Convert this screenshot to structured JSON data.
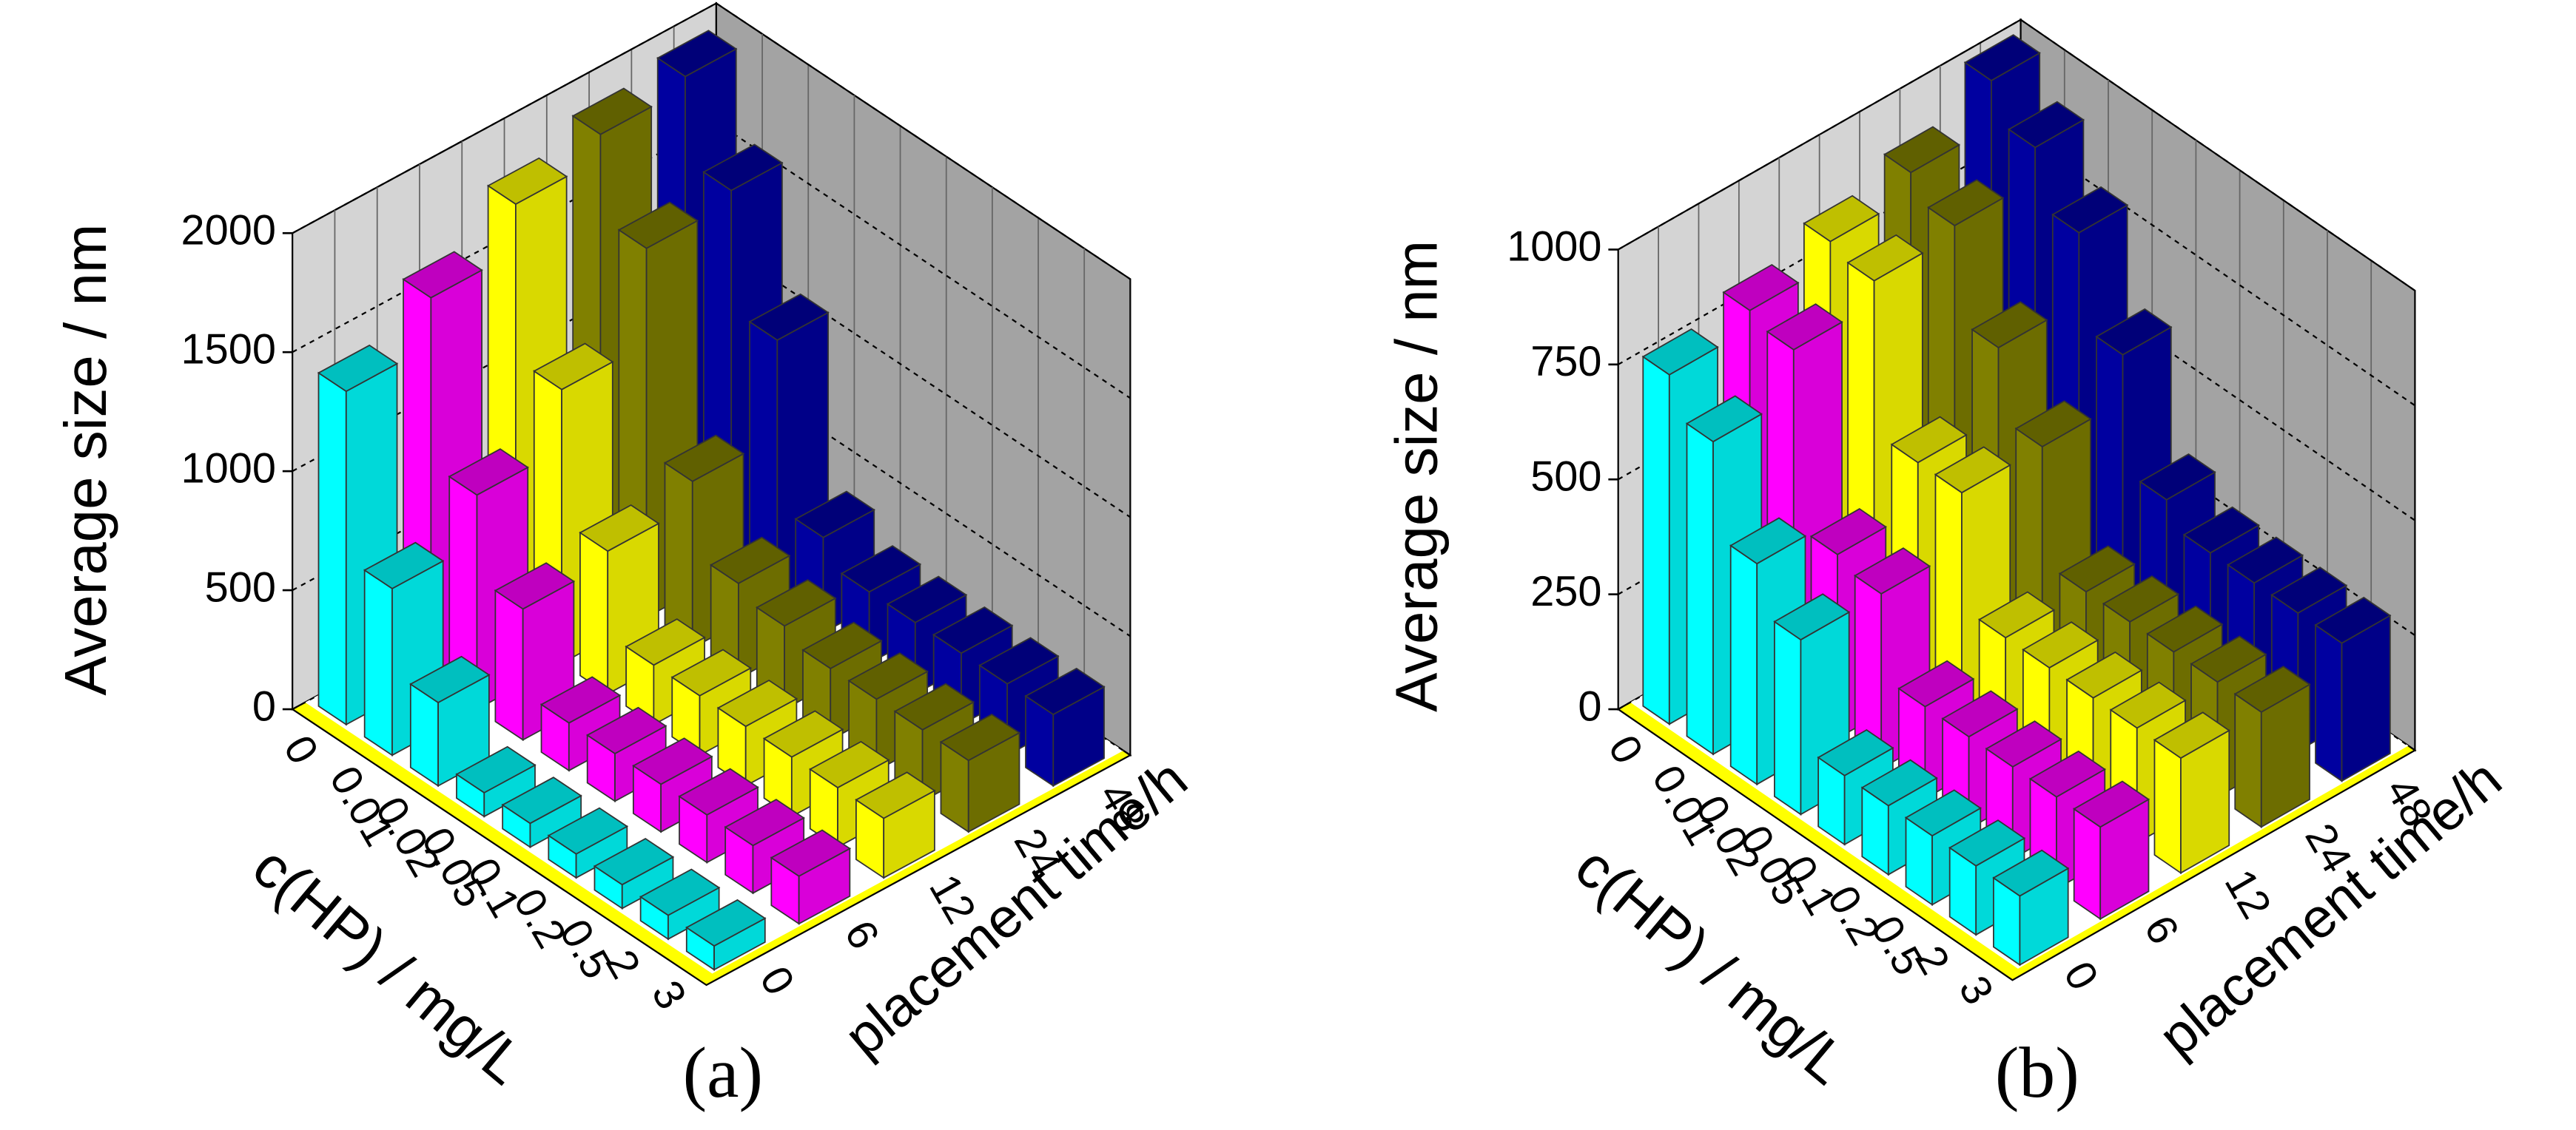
{
  "chart_data": [
    {
      "type": "bar3d",
      "label": "(a)",
      "ylabel": "Average size / nm",
      "xlabel": "c(HP) / mg/L",
      "series_label": "placement time/h",
      "categories": [
        "0",
        "0.01",
        "0.02",
        "0.05",
        "0.1",
        "0.2",
        "0.5",
        "2",
        "3"
      ],
      "ylim": [
        0,
        2000
      ],
      "yticks": [
        0,
        500,
        1000,
        1500,
        2000
      ],
      "series": [
        {
          "name": "0",
          "color": "#00ffff",
          "values": [
            1400,
            700,
            350,
            100,
            100,
            100,
            100,
            100,
            100
          ]
        },
        {
          "name": "6",
          "color": "#ff00ff",
          "values": [
            1600,
            900,
            550,
            200,
            200,
            200,
            200,
            200,
            200
          ]
        },
        {
          "name": "12",
          "color": "#ffff00",
          "values": [
            1800,
            1150,
            600,
            250,
            250,
            250,
            250,
            250,
            250
          ]
        },
        {
          "name": "24",
          "color": "#808000",
          "values": [
            1900,
            1550,
            700,
            400,
            350,
            300,
            300,
            300,
            300
          ]
        },
        {
          "name": "48",
          "color": "#0000a0",
          "values": [
            1950,
            1600,
            1100,
            400,
            300,
            300,
            300,
            300,
            300
          ]
        }
      ]
    },
    {
      "type": "bar3d",
      "label": "(b)",
      "ylabel": "Average size / nm",
      "xlabel": "c(HP) / mg/L",
      "series_label": "placement time/h",
      "categories": [
        "0",
        "0.01",
        "0.02",
        "0.05",
        "0.1",
        "0.2",
        "0.5",
        "2",
        "3"
      ],
      "ylim": [
        0,
        1000
      ],
      "yticks": [
        0,
        250,
        500,
        750,
        1000
      ],
      "series": [
        {
          "name": "0",
          "color": "#00ffff",
          "values": [
            760,
            680,
            480,
            380,
            150,
            150,
            150,
            150,
            150
          ]
        },
        {
          "name": "6",
          "color": "#ff00ff",
          "values": [
            800,
            780,
            400,
            380,
            200,
            200,
            200,
            200,
            200
          ]
        },
        {
          "name": "12",
          "color": "#ffff00",
          "values": [
            850,
            830,
            500,
            500,
            250,
            250,
            250,
            250,
            250
          ]
        },
        {
          "name": "24",
          "color": "#808000",
          "values": [
            900,
            850,
            650,
            500,
            250,
            250,
            250,
            250,
            250
          ]
        },
        {
          "name": "48",
          "color": "#0000a0",
          "values": [
            1000,
            920,
            800,
            600,
            350,
            300,
            300,
            300,
            300
          ]
        }
      ]
    }
  ]
}
